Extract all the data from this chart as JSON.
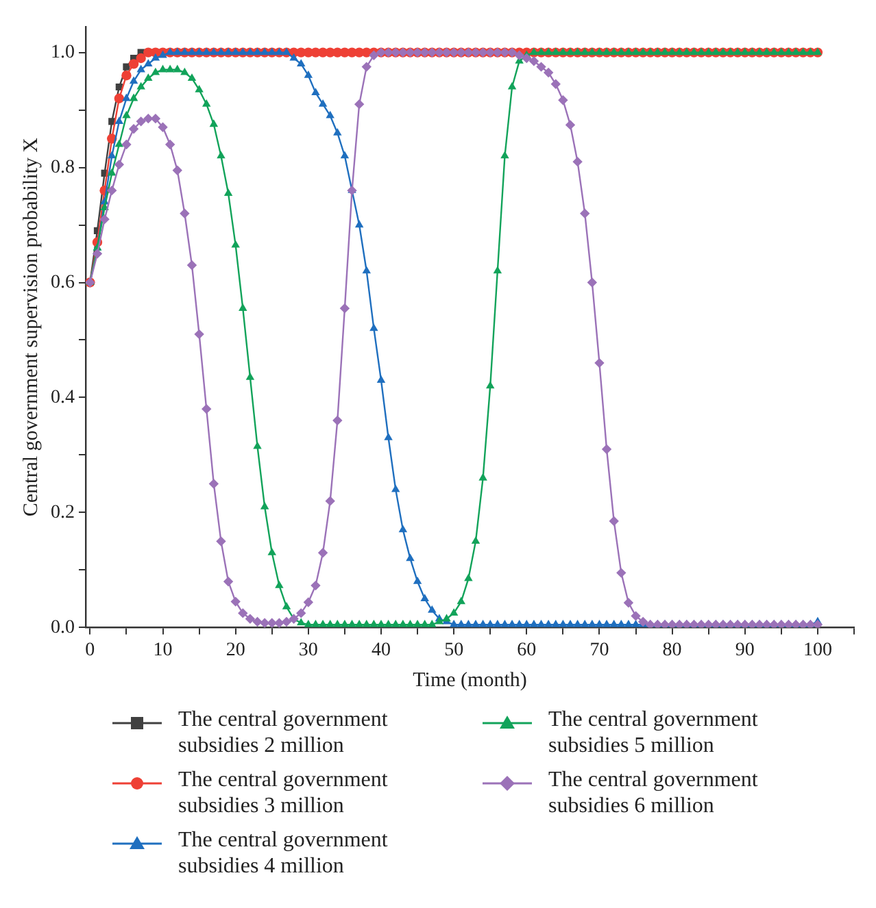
{
  "chart_data": {
    "type": "line",
    "xlabel": "Time (month)",
    "ylabel": "Central government supervision probability X",
    "x": [
      0,
      1,
      2,
      3,
      4,
      5,
      6,
      7,
      8,
      9,
      10,
      11,
      12,
      13,
      14,
      15,
      16,
      17,
      18,
      19,
      20,
      21,
      22,
      23,
      24,
      25,
      26,
      27,
      28,
      29,
      30,
      31,
      32,
      33,
      34,
      35,
      36,
      37,
      38,
      39,
      40,
      41,
      42,
      43,
      44,
      45,
      46,
      47,
      48,
      49,
      50,
      51,
      52,
      53,
      54,
      55,
      56,
      57,
      58,
      59,
      60,
      61,
      62,
      63,
      64,
      65,
      66,
      67,
      68,
      69,
      70,
      71,
      72,
      73,
      74,
      75,
      76,
      77,
      78,
      79,
      80,
      81,
      82,
      83,
      84,
      85,
      86,
      87,
      88,
      89,
      90,
      91,
      92,
      93,
      94,
      95,
      96,
      97,
      98,
      99,
      100
    ],
    "series": [
      {
        "name": "The central government subsidies 2 million",
        "color": "#404040",
        "marker": "square",
        "values": [
          0.6,
          0.69,
          0.79,
          0.88,
          0.94,
          0.975,
          0.99,
          1.0,
          1.0,
          1.0,
          1.0,
          1.0,
          1.0,
          1.0,
          null,
          null,
          null,
          null,
          null,
          null,
          null,
          null,
          null,
          null,
          null,
          null,
          null,
          null,
          null,
          null,
          null,
          null,
          null,
          null,
          null,
          null,
          null,
          null,
          null,
          null,
          null,
          null,
          null,
          null,
          null,
          null,
          null,
          null,
          null,
          null,
          null,
          null,
          null,
          null,
          null,
          null,
          null,
          null,
          null,
          null,
          null,
          null,
          null,
          null,
          null,
          null,
          null,
          null,
          null,
          null,
          null,
          null,
          null,
          null,
          null,
          null,
          null,
          null,
          null,
          null,
          null,
          null,
          null,
          null,
          null,
          null,
          null,
          null,
          null,
          null,
          null,
          null,
          null,
          null,
          null,
          null,
          null,
          null,
          null,
          null,
          null
        ]
      },
      {
        "name": "The central government subsidies 3 million",
        "color": "#ee4035",
        "marker": "circle",
        "values": [
          0.6,
          0.67,
          0.76,
          0.85,
          0.92,
          0.96,
          0.98,
          0.99,
          1.0,
          1.0,
          1.0,
          1.0,
          1.0,
          1.0,
          1.0,
          1.0,
          1.0,
          1.0,
          1.0,
          1.0,
          1.0,
          1.0,
          1.0,
          1.0,
          1.0,
          1.0,
          1.0,
          1.0,
          1.0,
          1.0,
          1.0,
          1.0,
          1.0,
          1.0,
          1.0,
          1.0,
          1.0,
          1.0,
          1.0,
          1.0,
          1.0,
          1.0,
          1.0,
          1.0,
          1.0,
          1.0,
          1.0,
          1.0,
          1.0,
          1.0,
          1.0,
          1.0,
          1.0,
          1.0,
          1.0,
          1.0,
          1.0,
          1.0,
          1.0,
          1.0,
          1.0,
          1.0,
          1.0,
          1.0,
          1.0,
          1.0,
          1.0,
          1.0,
          1.0,
          1.0,
          1.0,
          1.0,
          1.0,
          1.0,
          1.0,
          1.0,
          1.0,
          1.0,
          1.0,
          1.0,
          1.0,
          1.0,
          1.0,
          1.0,
          1.0,
          1.0,
          1.0,
          1.0,
          1.0,
          1.0,
          1.0,
          1.0,
          1.0,
          1.0,
          1.0,
          1.0,
          1.0,
          1.0,
          1.0,
          1.0,
          1.0
        ]
      },
      {
        "name": "The central government subsidies 4 million",
        "color": "#1f6fbf",
        "marker": "triangle",
        "values": [
          0.6,
          0.66,
          0.74,
          0.82,
          0.88,
          0.92,
          0.95,
          0.97,
          0.98,
          0.99,
          0.995,
          1.0,
          1.0,
          1.0,
          1.0,
          1.0,
          1.0,
          1.0,
          1.0,
          1.0,
          1.0,
          1.0,
          1.0,
          1.0,
          1.0,
          1.0,
          1.0,
          1.0,
          0.99,
          0.98,
          0.96,
          0.93,
          0.91,
          0.89,
          0.86,
          0.82,
          0.76,
          0.7,
          0.62,
          0.52,
          0.43,
          0.33,
          0.24,
          0.17,
          0.12,
          0.08,
          0.05,
          0.03,
          0.015,
          0.01,
          0.005,
          0.005,
          0.005,
          0.005,
          0.005,
          0.005,
          0.005,
          0.005,
          0.005,
          0.005,
          0.005,
          0.005,
          0.005,
          0.005,
          0.005,
          0.005,
          0.005,
          0.005,
          0.005,
          0.005,
          0.005,
          0.005,
          0.005,
          0.005,
          0.005,
          0.005,
          0.005,
          0.005,
          0.005,
          0.005,
          0.005,
          0.005,
          0.005,
          0.005,
          0.005,
          0.005,
          0.005,
          0.005,
          0.005,
          0.005,
          0.005,
          0.005,
          0.005,
          0.005,
          0.005,
          0.005,
          0.005,
          0.005,
          0.005,
          0.005,
          0.01
        ]
      },
      {
        "name": "The central government subsidies 5 million",
        "color": "#12a35a",
        "marker": "triangle",
        "values": [
          0.6,
          0.66,
          0.73,
          0.79,
          0.84,
          0.89,
          0.92,
          0.94,
          0.955,
          0.965,
          0.97,
          0.97,
          0.97,
          0.965,
          0.955,
          0.935,
          0.91,
          0.875,
          0.82,
          0.755,
          0.665,
          0.555,
          0.435,
          0.315,
          0.21,
          0.13,
          0.073,
          0.036,
          0.015,
          0.008,
          0.005,
          0.005,
          0.005,
          0.005,
          0.005,
          0.005,
          0.005,
          0.005,
          0.005,
          0.005,
          0.005,
          0.005,
          0.005,
          0.005,
          0.005,
          0.005,
          0.005,
          0.005,
          0.01,
          0.015,
          0.025,
          0.045,
          0.085,
          0.15,
          0.26,
          0.42,
          0.62,
          0.82,
          0.94,
          0.985,
          0.995,
          1.0,
          1.0,
          1.0,
          1.0,
          1.0,
          1.0,
          1.0,
          1.0,
          1.0,
          1.0,
          1.0,
          1.0,
          1.0,
          1.0,
          1.0,
          1.0,
          1.0,
          1.0,
          1.0,
          1.0,
          1.0,
          1.0,
          1.0,
          1.0,
          1.0,
          1.0,
          1.0,
          1.0,
          1.0,
          1.0,
          1.0,
          1.0,
          1.0,
          1.0,
          1.0,
          1.0,
          1.0,
          1.0,
          1.0,
          1.0
        ]
      },
      {
        "name": "The central government subsidies 6 million",
        "color": "#9b72b8",
        "marker": "diamond",
        "values": [
          0.6,
          0.65,
          0.71,
          0.76,
          0.805,
          0.84,
          0.867,
          0.88,
          0.885,
          0.885,
          0.87,
          0.84,
          0.795,
          0.72,
          0.63,
          0.51,
          0.38,
          0.25,
          0.15,
          0.08,
          0.045,
          0.025,
          0.015,
          0.01,
          0.008,
          0.008,
          0.008,
          0.01,
          0.015,
          0.025,
          0.044,
          0.073,
          0.13,
          0.22,
          0.36,
          0.555,
          0.76,
          0.91,
          0.975,
          0.995,
          1.0,
          1.0,
          1.0,
          1.0,
          1.0,
          1.0,
          1.0,
          1.0,
          1.0,
          1.0,
          1.0,
          1.0,
          1.0,
          1.0,
          1.0,
          1.0,
          1.0,
          1.0,
          1.0,
          0.995,
          0.99,
          0.985,
          0.975,
          0.965,
          0.945,
          0.917,
          0.874,
          0.81,
          0.72,
          0.6,
          0.46,
          0.31,
          0.185,
          0.095,
          0.043,
          0.02,
          0.01,
          0.005,
          0.005,
          0.005,
          0.005,
          0.005,
          0.005,
          0.005,
          0.005,
          0.005,
          0.005,
          0.005,
          0.005,
          0.005,
          0.005,
          0.005,
          0.005,
          0.005,
          0.005,
          0.005,
          0.005,
          0.005,
          0.005,
          0.005,
          0.005
        ]
      }
    ],
    "xlim": [
      -0.6,
      105
    ],
    "ylim": [
      0,
      1.045
    ],
    "xticks": [
      0,
      {
        "value": 5,
        "label": null
      },
      10,
      {
        "value": 15,
        "label": null
      },
      20,
      {
        "value": 25,
        "label": null
      },
      30,
      {
        "value": 35,
        "label": null
      },
      40,
      {
        "value": 45,
        "label": null
      },
      50,
      {
        "value": 55,
        "label": null
      },
      60,
      {
        "value": 65,
        "label": null
      },
      70,
      {
        "value": 75,
        "label": null
      },
      80,
      {
        "value": 85,
        "label": null
      },
      90,
      {
        "value": 95,
        "label": null
      },
      100,
      {
        "value": 105,
        "label": null
      }
    ],
    "yticks": [
      {
        "value": 0,
        "label": "0.0"
      },
      {
        "value": 0.1,
        "label": null
      },
      {
        "value": 0.2,
        "label": "0.2"
      },
      {
        "value": 0.3,
        "label": null
      },
      {
        "value": 0.4,
        "label": "0.4"
      },
      {
        "value": 0.5,
        "label": null
      },
      {
        "value": 0.6,
        "label": "0.6"
      },
      {
        "value": 0.7,
        "label": null
      },
      {
        "value": 0.8,
        "label": "0.8"
      },
      {
        "value": 0.9,
        "label": null
      },
      {
        "value": 1,
        "label": "1.0"
      }
    ],
    "grid": false,
    "legend": "bottom",
    "line_style": "solid"
  }
}
